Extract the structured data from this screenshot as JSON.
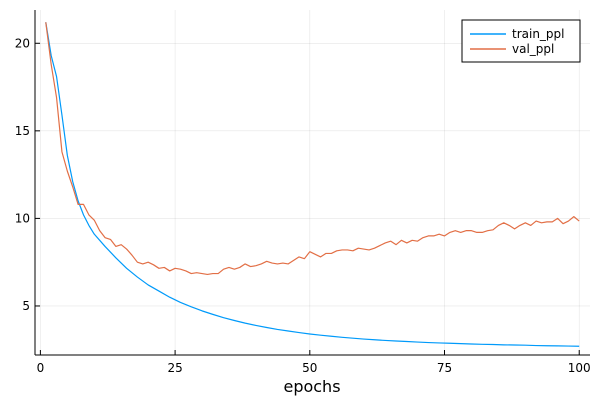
{
  "chart_data": {
    "type": "line",
    "title": "",
    "xlabel": "epochs",
    "ylabel": "",
    "xlim": [
      -1,
      102
    ],
    "ylim": [
      2.2,
      21.9
    ],
    "xticks": [
      0,
      25,
      50,
      75,
      100
    ],
    "yticks": [
      5,
      10,
      15,
      20
    ],
    "xtick_labels": [
      "0",
      "25",
      "50",
      "75",
      "100"
    ],
    "ytick_labels": [
      "5",
      "10",
      "15",
      "20"
    ],
    "grid": true,
    "legend_position": "top-right",
    "series": [
      {
        "name": "train_ppl",
        "color": "#009AFA",
        "x": [
          1,
          2,
          3,
          4,
          5,
          6,
          7,
          8,
          9,
          10,
          12,
          14,
          16,
          18,
          20,
          22,
          24,
          26,
          28,
          30,
          32,
          34,
          36,
          38,
          40,
          42,
          44,
          46,
          48,
          50,
          52,
          54,
          56,
          58,
          60,
          62,
          64,
          66,
          68,
          70,
          72,
          74,
          76,
          78,
          80,
          82,
          84,
          86,
          88,
          90,
          92,
          94,
          96,
          98,
          100
        ],
        "y": [
          21.2,
          19.3,
          18.1,
          15.9,
          13.6,
          12.1,
          11.0,
          10.2,
          9.6,
          9.1,
          8.4,
          7.75,
          7.15,
          6.65,
          6.2,
          5.85,
          5.5,
          5.2,
          4.95,
          4.72,
          4.52,
          4.33,
          4.17,
          4.02,
          3.89,
          3.77,
          3.66,
          3.57,
          3.48,
          3.4,
          3.33,
          3.27,
          3.21,
          3.16,
          3.11,
          3.07,
          3.03,
          3.0,
          2.97,
          2.94,
          2.91,
          2.89,
          2.87,
          2.85,
          2.83,
          2.81,
          2.8,
          2.78,
          2.77,
          2.76,
          2.74,
          2.73,
          2.72,
          2.71,
          2.7
        ]
      },
      {
        "name": "val_ppl",
        "color": "#E26F46",
        "x": [
          1,
          2,
          3,
          4,
          5,
          6,
          7,
          8,
          9,
          10,
          11,
          12,
          13,
          14,
          15,
          16,
          17,
          18,
          19,
          20,
          21,
          22,
          23,
          24,
          25,
          26,
          27,
          28,
          29,
          30,
          31,
          32,
          33,
          34,
          35,
          36,
          37,
          38,
          39,
          40,
          41,
          42,
          43,
          44,
          45,
          46,
          47,
          48,
          49,
          50,
          51,
          52,
          53,
          54,
          55,
          56,
          57,
          58,
          59,
          60,
          61,
          62,
          63,
          64,
          65,
          66,
          67,
          68,
          69,
          70,
          71,
          72,
          73,
          74,
          75,
          76,
          77,
          78,
          79,
          80,
          81,
          82,
          83,
          84,
          85,
          86,
          87,
          88,
          89,
          90,
          91,
          92,
          93,
          94,
          95,
          96,
          97,
          98,
          99,
          100
        ],
        "y": [
          21.2,
          18.8,
          16.9,
          13.8,
          12.7,
          11.8,
          10.8,
          10.8,
          10.2,
          9.9,
          9.3,
          8.9,
          8.8,
          8.4,
          8.5,
          8.25,
          7.9,
          7.5,
          7.4,
          7.5,
          7.35,
          7.15,
          7.2,
          7.0,
          7.15,
          7.1,
          7.0,
          6.85,
          6.9,
          6.85,
          6.8,
          6.85,
          6.85,
          7.1,
          7.2,
          7.1,
          7.2,
          7.4,
          7.25,
          7.3,
          7.4,
          7.55,
          7.45,
          7.4,
          7.45,
          7.4,
          7.6,
          7.8,
          7.7,
          8.1,
          7.95,
          7.8,
          8.0,
          8.0,
          8.15,
          8.2,
          8.2,
          8.15,
          8.3,
          8.25,
          8.2,
          8.3,
          8.45,
          8.6,
          8.7,
          8.5,
          8.75,
          8.6,
          8.75,
          8.7,
          8.9,
          9.0,
          9.0,
          9.1,
          9.0,
          9.2,
          9.3,
          9.2,
          9.3,
          9.3,
          9.2,
          9.2,
          9.3,
          9.35,
          9.6,
          9.75,
          9.6,
          9.4,
          9.6,
          9.75,
          9.6,
          9.85,
          9.75,
          9.8,
          9.8,
          10.0,
          9.7,
          9.85,
          10.1,
          9.85
        ]
      }
    ]
  }
}
